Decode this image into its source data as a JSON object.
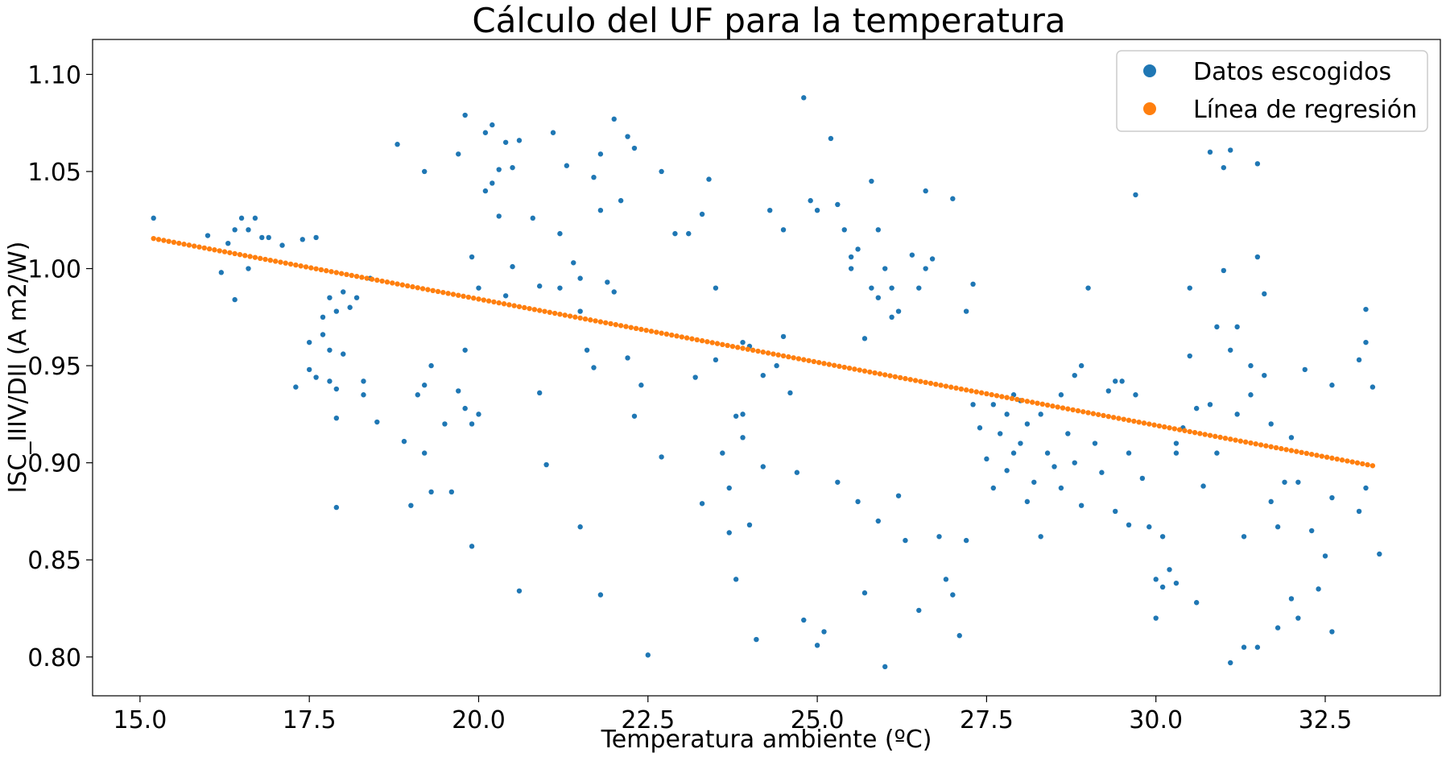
{
  "chart_data": {
    "type": "scatter",
    "title": "Cálculo del UF para la temperatura",
    "xlabel": "Temperatura ambiente (ºC)",
    "ylabel": "ISC_IIIV/DII (A m2/W)",
    "xlim": [
      14.3,
      34.2
    ],
    "ylim": [
      0.78,
      1.118
    ],
    "x_ticks": [
      "15.0",
      "17.5",
      "20.0",
      "22.5",
      "25.0",
      "27.5",
      "30.0",
      "32.5"
    ],
    "y_ticks": [
      "0.80",
      "0.85",
      "0.90",
      "0.95",
      "1.00",
      "1.05",
      "1.10"
    ],
    "legend_position": "top-right",
    "grid": false,
    "series": [
      {
        "name": "Datos escogidos",
        "color": "#1f77b4",
        "points": [
          [
            15.2,
            1.026
          ],
          [
            16.2,
            0.998
          ],
          [
            16.3,
            1.013
          ],
          [
            16.4,
            1.02
          ],
          [
            16.5,
            1.026
          ],
          [
            16.4,
            0.984
          ],
          [
            16.6,
            1.02
          ],
          [
            16.7,
            1.026
          ],
          [
            16.6,
            1.0
          ],
          [
            16.8,
            1.016
          ],
          [
            16.9,
            1.016
          ],
          [
            17.1,
            1.012
          ],
          [
            16.0,
            1.017
          ],
          [
            17.3,
            0.939
          ],
          [
            17.4,
            1.015
          ],
          [
            17.5,
            0.962
          ],
          [
            17.5,
            0.948
          ],
          [
            17.6,
            0.944
          ],
          [
            17.6,
            1.016
          ],
          [
            17.7,
            0.975
          ],
          [
            17.7,
            0.966
          ],
          [
            17.8,
            0.985
          ],
          [
            17.8,
            0.958
          ],
          [
            17.8,
            0.942
          ],
          [
            17.9,
            0.923
          ],
          [
            17.9,
            0.938
          ],
          [
            17.9,
            0.978
          ],
          [
            18.0,
            0.988
          ],
          [
            18.0,
            0.956
          ],
          [
            17.9,
            0.877
          ],
          [
            18.1,
            0.98
          ],
          [
            18.2,
            0.985
          ],
          [
            18.3,
            0.935
          ],
          [
            18.3,
            0.942
          ],
          [
            18.4,
            0.995
          ],
          [
            18.5,
            0.921
          ],
          [
            18.8,
            1.064
          ],
          [
            18.9,
            0.911
          ],
          [
            19.0,
            0.878
          ],
          [
            19.1,
            0.935
          ],
          [
            19.2,
            0.94
          ],
          [
            19.3,
            0.95
          ],
          [
            19.2,
            1.05
          ],
          [
            19.2,
            0.905
          ],
          [
            19.3,
            0.885
          ],
          [
            19.5,
            0.92
          ],
          [
            19.6,
            0.885
          ],
          [
            19.7,
            0.937
          ],
          [
            19.8,
            0.958
          ],
          [
            19.8,
            1.079
          ],
          [
            19.7,
            1.059
          ],
          [
            19.8,
            0.928
          ],
          [
            19.9,
            1.006
          ],
          [
            19.9,
            0.857
          ],
          [
            19.9,
            0.92
          ],
          [
            20.0,
            0.925
          ],
          [
            20.0,
            0.99
          ],
          [
            20.1,
            1.07
          ],
          [
            20.1,
            1.04
          ],
          [
            20.2,
            1.074
          ],
          [
            20.2,
            1.044
          ],
          [
            20.3,
            1.051
          ],
          [
            20.3,
            1.027
          ],
          [
            20.4,
            1.065
          ],
          [
            20.4,
            0.986
          ],
          [
            20.5,
            1.052
          ],
          [
            20.5,
            1.001
          ],
          [
            20.6,
            1.066
          ],
          [
            20.6,
            0.834
          ],
          [
            20.8,
            1.026
          ],
          [
            20.9,
            0.991
          ],
          [
            20.9,
            0.936
          ],
          [
            21.0,
            0.899
          ],
          [
            21.1,
            1.07
          ],
          [
            21.2,
            0.99
          ],
          [
            21.2,
            1.018
          ],
          [
            21.3,
            1.053
          ],
          [
            21.4,
            1.003
          ],
          [
            21.5,
            0.995
          ],
          [
            21.5,
            0.978
          ],
          [
            21.5,
            0.867
          ],
          [
            21.6,
            0.958
          ],
          [
            21.7,
            0.949
          ],
          [
            21.7,
            1.047
          ],
          [
            21.8,
            1.059
          ],
          [
            21.8,
            1.03
          ],
          [
            21.8,
            0.832
          ],
          [
            21.9,
            0.993
          ],
          [
            22.0,
            0.988
          ],
          [
            22.0,
            1.077
          ],
          [
            22.1,
            1.035
          ],
          [
            22.2,
            1.068
          ],
          [
            22.2,
            0.954
          ],
          [
            22.3,
            1.062
          ],
          [
            22.3,
            0.924
          ],
          [
            22.4,
            0.94
          ],
          [
            22.5,
            0.801
          ],
          [
            22.7,
            1.05
          ],
          [
            22.7,
            0.903
          ],
          [
            23.1,
            1.018
          ],
          [
            23.2,
            0.944
          ],
          [
            23.3,
            1.028
          ],
          [
            23.3,
            0.879
          ],
          [
            23.4,
            1.046
          ],
          [
            23.5,
            0.99
          ],
          [
            23.5,
            0.953
          ],
          [
            23.6,
            0.905
          ],
          [
            23.7,
            0.887
          ],
          [
            23.7,
            0.864
          ],
          [
            23.8,
            0.924
          ],
          [
            23.8,
            0.84
          ],
          [
            23.9,
            0.925
          ],
          [
            23.9,
            0.913
          ],
          [
            24.0,
            0.96
          ],
          [
            24.0,
            0.868
          ],
          [
            24.1,
            0.809
          ],
          [
            24.2,
            0.945
          ],
          [
            24.2,
            0.898
          ],
          [
            24.3,
            1.03
          ],
          [
            24.4,
            0.95
          ],
          [
            24.5,
            1.02
          ],
          [
            24.6,
            0.936
          ],
          [
            24.7,
            0.895
          ],
          [
            24.8,
            1.088
          ],
          [
            24.8,
            0.819
          ],
          [
            24.9,
            1.035
          ],
          [
            25.0,
            0.806
          ],
          [
            25.0,
            1.03
          ],
          [
            25.1,
            0.813
          ],
          [
            25.2,
            1.067
          ],
          [
            25.3,
            0.89
          ],
          [
            25.4,
            1.02
          ],
          [
            25.5,
            1.006
          ],
          [
            25.5,
            1.0
          ],
          [
            25.6,
            1.01
          ],
          [
            25.6,
            0.88
          ],
          [
            25.7,
            0.964
          ],
          [
            25.7,
            0.833
          ],
          [
            25.8,
            1.045
          ],
          [
            25.8,
            0.99
          ],
          [
            25.9,
            0.985
          ],
          [
            25.9,
            0.87
          ],
          [
            26.0,
            0.795
          ],
          [
            26.0,
            1.0
          ],
          [
            26.1,
            0.99
          ],
          [
            26.1,
            0.975
          ],
          [
            26.2,
            0.883
          ],
          [
            26.3,
            0.86
          ],
          [
            26.4,
            1.007
          ],
          [
            26.5,
            0.824
          ],
          [
            26.5,
            0.99
          ],
          [
            26.6,
            1.04
          ],
          [
            26.6,
            1.0
          ],
          [
            26.7,
            1.005
          ],
          [
            26.8,
            0.862
          ],
          [
            26.9,
            0.84
          ],
          [
            27.0,
            1.036
          ],
          [
            27.0,
            0.832
          ],
          [
            27.1,
            0.811
          ],
          [
            27.2,
            0.86
          ],
          [
            27.2,
            0.978
          ],
          [
            27.3,
            0.93
          ],
          [
            27.4,
            0.918
          ],
          [
            27.5,
            0.902
          ],
          [
            27.6,
            0.93
          ],
          [
            27.6,
            0.887
          ],
          [
            27.7,
            0.915
          ],
          [
            27.8,
            0.925
          ],
          [
            27.8,
            0.896
          ],
          [
            27.9,
            0.905
          ],
          [
            28.0,
            0.932
          ],
          [
            28.0,
            0.91
          ],
          [
            28.1,
            0.92
          ],
          [
            28.1,
            0.88
          ],
          [
            28.2,
            0.89
          ],
          [
            28.3,
            0.925
          ],
          [
            28.3,
            0.862
          ],
          [
            28.4,
            0.905
          ],
          [
            28.5,
            0.898
          ],
          [
            28.6,
            0.887
          ],
          [
            28.6,
            0.935
          ],
          [
            28.7,
            0.915
          ],
          [
            28.8,
            0.9
          ],
          [
            28.9,
            0.95
          ],
          [
            28.9,
            0.878
          ],
          [
            29.0,
            0.99
          ],
          [
            29.1,
            0.91
          ],
          [
            29.2,
            0.895
          ],
          [
            29.3,
            0.937
          ],
          [
            29.4,
            0.875
          ],
          [
            29.5,
            0.942
          ],
          [
            29.6,
            0.905
          ],
          [
            29.6,
            0.868
          ],
          [
            29.7,
            1.038
          ],
          [
            29.7,
            0.935
          ],
          [
            29.8,
            0.892
          ],
          [
            29.9,
            0.867
          ],
          [
            30.0,
            0.84
          ],
          [
            30.0,
            0.82
          ],
          [
            30.1,
            0.862
          ],
          [
            30.1,
            0.836
          ],
          [
            30.2,
            0.845
          ],
          [
            30.3,
            0.838
          ],
          [
            30.3,
            0.905
          ],
          [
            30.4,
            0.918
          ],
          [
            30.5,
            0.99
          ],
          [
            30.5,
            0.955
          ],
          [
            30.6,
            0.828
          ],
          [
            30.6,
            0.928
          ],
          [
            30.7,
            0.888
          ],
          [
            30.8,
            1.06
          ],
          [
            30.8,
            0.93
          ],
          [
            30.9,
            0.97
          ],
          [
            30.9,
            0.905
          ],
          [
            31.0,
            0.999
          ],
          [
            31.0,
            1.052
          ],
          [
            31.1,
            0.958
          ],
          [
            31.1,
            1.061
          ],
          [
            31.1,
            0.797
          ],
          [
            31.2,
            0.97
          ],
          [
            31.2,
            0.925
          ],
          [
            31.3,
            0.805
          ],
          [
            31.3,
            0.862
          ],
          [
            31.4,
            0.935
          ],
          [
            31.5,
            1.054
          ],
          [
            31.5,
            1.006
          ],
          [
            31.5,
            0.805
          ],
          [
            31.6,
            0.987
          ],
          [
            31.6,
            0.945
          ],
          [
            31.7,
            0.92
          ],
          [
            31.7,
            0.88
          ],
          [
            31.8,
            0.815
          ],
          [
            31.8,
            0.867
          ],
          [
            31.9,
            0.89
          ],
          [
            32.0,
            0.913
          ],
          [
            32.0,
            0.83
          ],
          [
            32.1,
            0.89
          ],
          [
            32.1,
            0.82
          ],
          [
            32.2,
            0.948
          ],
          [
            32.3,
            0.865
          ],
          [
            32.4,
            0.835
          ],
          [
            32.5,
            0.852
          ],
          [
            32.6,
            0.882
          ],
          [
            32.6,
            0.813
          ],
          [
            32.6,
            0.94
          ],
          [
            33.0,
            0.953
          ],
          [
            33.0,
            0.875
          ],
          [
            33.1,
            0.979
          ],
          [
            33.1,
            0.962
          ],
          [
            33.2,
            0.939
          ],
          [
            33.3,
            0.853
          ],
          [
            33.1,
            0.887
          ],
          [
            26.2,
            0.978
          ],
          [
            25.9,
            1.02
          ],
          [
            27.3,
            0.992
          ],
          [
            28.8,
            0.945
          ],
          [
            29.4,
            0.942
          ],
          [
            30.3,
            0.91
          ],
          [
            31.4,
            0.95
          ],
          [
            24.5,
            0.965
          ],
          [
            23.9,
            0.962
          ],
          [
            22.9,
            1.018
          ],
          [
            25.3,
            1.033
          ],
          [
            27.9,
            0.935
          ]
        ]
      },
      {
        "name": "Línea de regresión",
        "color": "#ff7f0e",
        "line": {
          "x_start": 15.2,
          "y_start": 1.0155,
          "x_end": 33.2,
          "y_end": 0.8985
        }
      }
    ]
  }
}
